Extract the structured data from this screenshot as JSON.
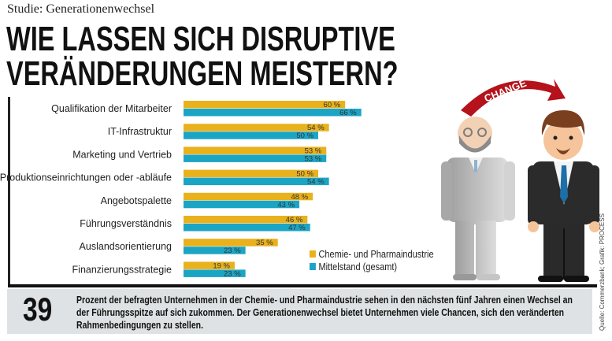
{
  "kicker": "Studie: Generationenwechsel",
  "title_lines": [
    "WIE LASSEN SICH DISRUPTIVE",
    "VERÄNDERUNGEN MEISTERN?"
  ],
  "illustration": {
    "arrow_text": "CHANGE"
  },
  "chart_data": {
    "type": "bar",
    "orientation": "horizontal",
    "categories": [
      "Qualifikation der Mitarbeiter",
      "IT-Infrastruktur",
      "Marketing und Vertrieb",
      "Produktionseinrichtungen oder -abläufe",
      "Angebotspalette",
      "Führungsverständnis",
      "Auslandsorientierung",
      "Finanzierungsstrategie"
    ],
    "series": [
      {
        "name": "Chemie- und Pharmaindustrie",
        "color": "#e9b11c",
        "values": [
          60,
          54,
          53,
          50,
          48,
          46,
          35,
          19
        ]
      },
      {
        "name": "Mittelstand (gesamt)",
        "color": "#1ba5c4",
        "values": [
          66,
          50,
          53,
          54,
          43,
          47,
          23,
          23
        ]
      }
    ],
    "value_suffix": " %",
    "legend_position": "bottom-right",
    "grid": false
  },
  "note": {
    "number": "39",
    "text": "Prozent der befragten Unternehmen in der Chemie- und Pharmaindustrie sehen in den nächsten fünf Jahren einen Wechsel an der Führungsspitze auf sich zukommen. Der Generationenwechsel bietet Unternehmen viele Chancen, sich den veränderten Rahmenbedingungen zu stellen."
  },
  "source": "Quelle: Commerzbank; Grafik: PROCESS"
}
